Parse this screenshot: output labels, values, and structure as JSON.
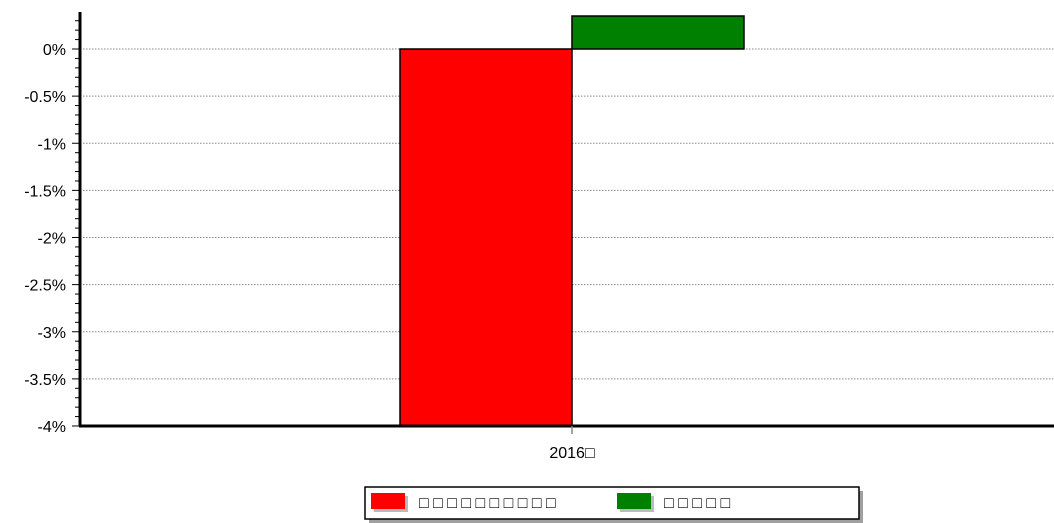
{
  "chart_data": {
    "type": "bar",
    "categories": [
      "2016□"
    ],
    "series": [
      {
        "name": "□ □ □ □ □ □ □ □ □ □",
        "color": "#ff0000",
        "values": [
          -4.0
        ]
      },
      {
        "name": "□ □ □ □ □",
        "color": "#008000",
        "values": [
          0.35
        ]
      }
    ],
    "ylim": [
      -4,
      0.35
    ],
    "yticks": [
      {
        "value": 0,
        "label": "0%"
      },
      {
        "value": -0.5,
        "label": "-0.5%"
      },
      {
        "value": -1,
        "label": "-1%"
      },
      {
        "value": -1.5,
        "label": "-1.5%"
      },
      {
        "value": -2,
        "label": "-2%"
      },
      {
        "value": -2.5,
        "label": "-2.5%"
      },
      {
        "value": -3,
        "label": "-3%"
      },
      {
        "value": -3.5,
        "label": "-3.5%"
      },
      {
        "value": -4,
        "label": "-4%"
      }
    ],
    "grid": true,
    "legend_position": "bottom-center"
  }
}
